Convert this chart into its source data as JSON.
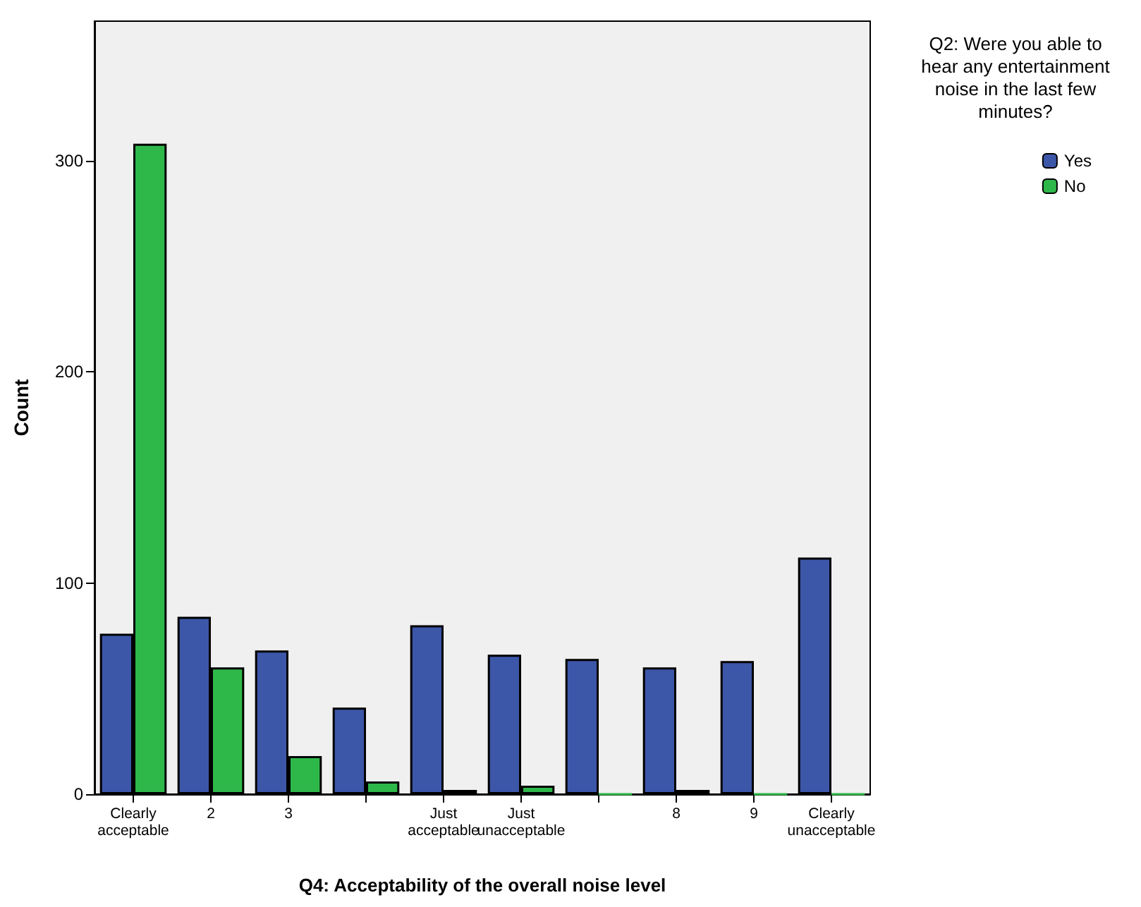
{
  "chart_data": {
    "type": "bar",
    "categories": [
      "Clearly\nacceptable",
      "2",
      "3",
      null,
      "Just\nacceptable",
      "Just\nunacceptable",
      null,
      "8",
      "9",
      "Clearly\nunacceptable"
    ],
    "series": [
      {
        "name": "Yes",
        "color": "#3c56a8",
        "values": [
          76,
          84,
          68,
          41,
          80,
          66,
          64,
          60,
          63,
          112
        ]
      },
      {
        "name": "No",
        "color": "#2fb84a",
        "values": [
          308,
          60,
          18,
          6,
          2,
          4,
          0,
          2,
          0,
          0
        ]
      }
    ],
    "xlabel": "Q4: Acceptability of the overall noise level",
    "ylabel": "Count",
    "legend_title": "Q2: Were you able to\nhear any entertainment\nnoise in the last few\nminutes?",
    "legend": "top right",
    "grid": false,
    "ylim": [
      0,
      366
    ],
    "yticks": [
      0,
      100,
      200,
      300
    ]
  }
}
